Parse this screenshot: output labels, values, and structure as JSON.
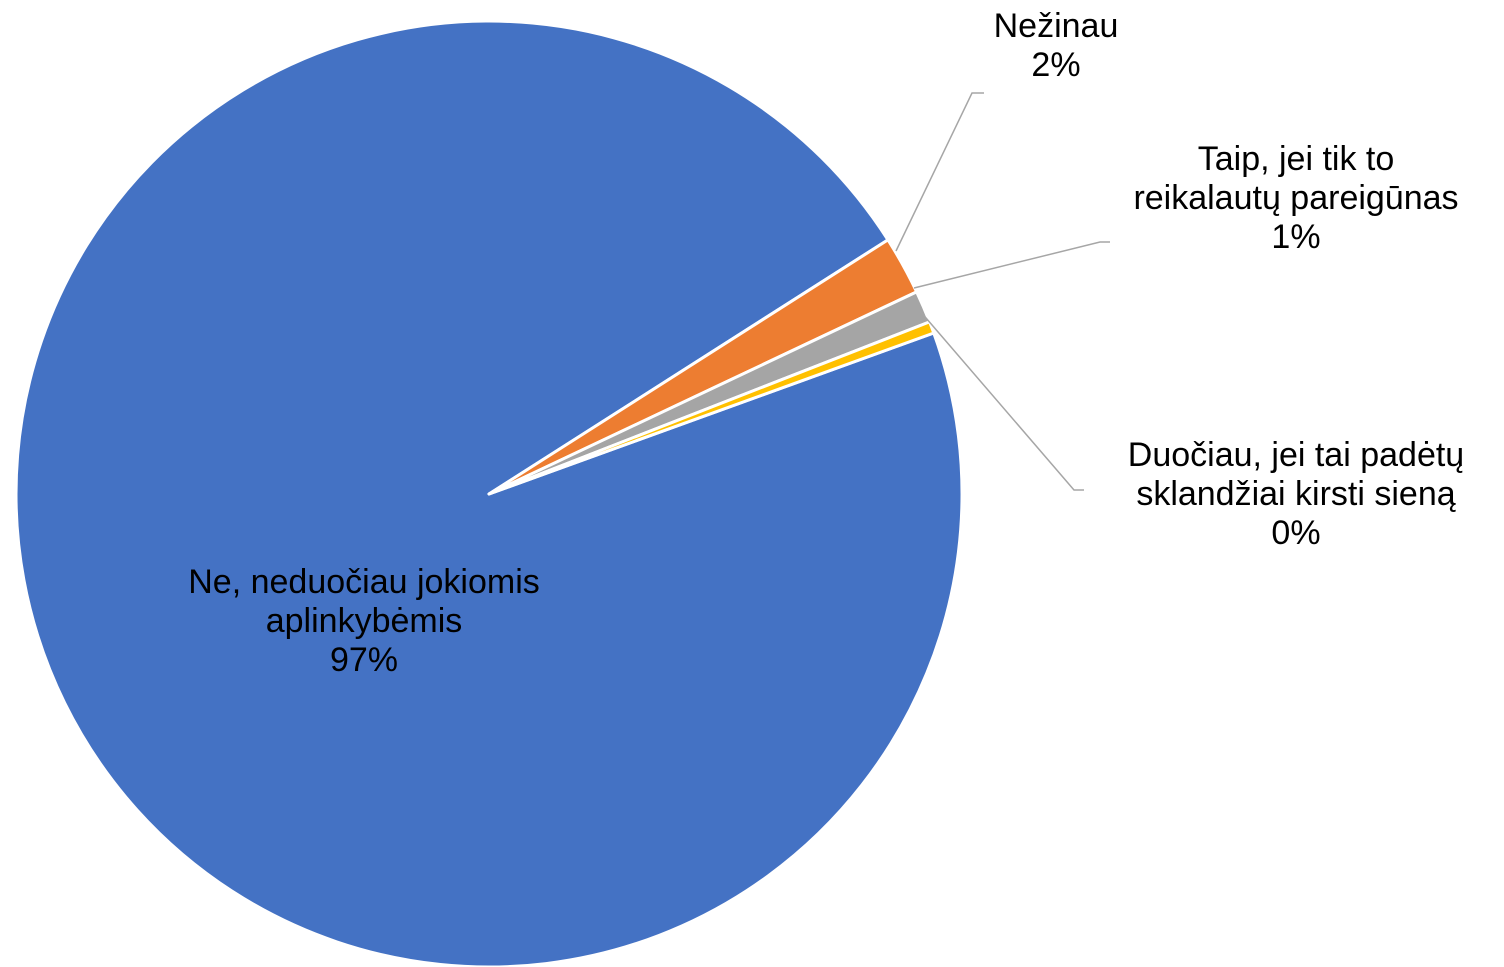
{
  "chart_data": {
    "type": "pie",
    "title": "",
    "categories": [
      "Ne, neduočiau jokiomis aplinkybėmis",
      "Nežinau",
      "Taip, jei tik to reikalautų pareigūnas",
      "Duočiau, jei tai padėtų sklandžiai kirsti sieną"
    ],
    "values": [
      96.5,
      2.0,
      1.1,
      0.4
    ],
    "colors": [
      "#4472C4",
      "#ED7D31",
      "#A5A5A5",
      "#FFC000"
    ],
    "labels": [
      {
        "lines": [
          "Ne, neduočiau jokiomis",
          "aplinkybėmis"
        ],
        "percent": "97%"
      },
      {
        "lines": [
          "Nežinau"
        ],
        "percent": "2%"
      },
      {
        "lines": [
          "Taip, jei tik to",
          "reikalautų pareigūnas"
        ],
        "percent": "1%"
      },
      {
        "lines": [
          "Duočiau, jei tai padėtų",
          "sklandžiai kirsti sieną"
        ],
        "percent": "0%"
      }
    ],
    "legend": "none",
    "leader_line_color": "#A6A6A6"
  }
}
